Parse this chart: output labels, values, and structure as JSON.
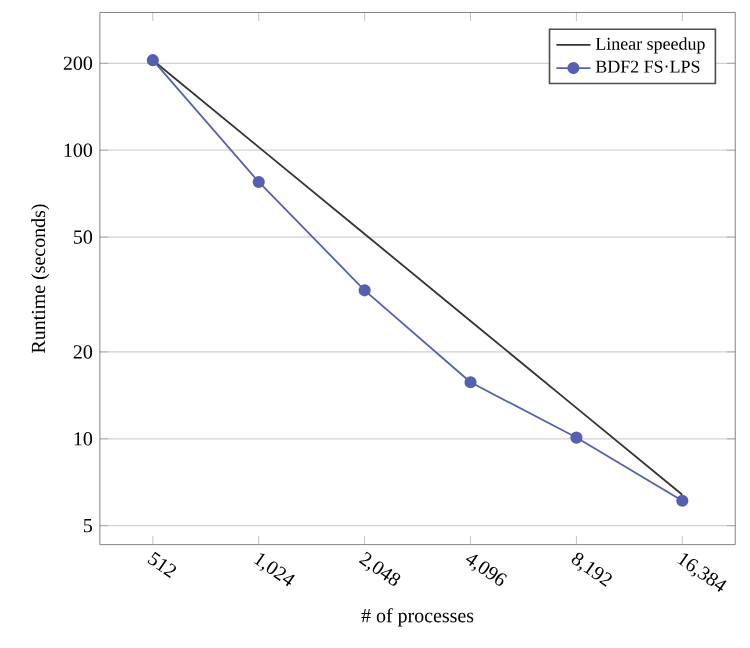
{
  "chart_data": {
    "type": "line",
    "xlabel": "# of processes",
    "ylabel": "Runtime (seconds)",
    "x": [
      512,
      1024,
      2048,
      4096,
      8192,
      16384
    ],
    "series": [
      {
        "name": "Linear speedup",
        "color": "#333333",
        "marker": "none",
        "values": [
          205,
          102.5,
          51.25,
          25.6,
          12.8,
          6.4
        ]
      },
      {
        "name": "BDF2 FS·LPS",
        "color": "#5560b0",
        "marker": "circle",
        "values": [
          205,
          77.6,
          32.7,
          15.7,
          10.1,
          6.1
        ]
      }
    ],
    "log": "xy",
    "xlim": [
      362,
      23170
    ],
    "ylim": [
      4.3,
      300
    ],
    "xticks": [
      512,
      {
        "value": 1024,
        "label": "1,024"
      },
      {
        "value": 2048,
        "label": "2,048"
      },
      {
        "value": 4096,
        "label": "4,096"
      },
      {
        "value": 8192,
        "label": "8,192"
      },
      {
        "value": 16384,
        "label": "16,384"
      }
    ],
    "yticks": [
      5,
      10,
      20,
      50,
      100,
      200
    ],
    "grid": "y",
    "legend": "top right"
  }
}
